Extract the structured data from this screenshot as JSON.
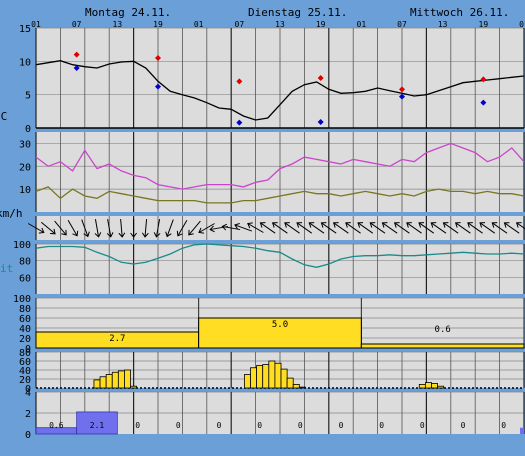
{
  "days": [
    "Montag 24.11.",
    "Dienstag 25.11.",
    "Mittwoch 26.11."
  ],
  "hour_labels": [
    "01",
    "07",
    "13",
    "19",
    "01",
    "07",
    "13",
    "19",
    "01",
    "07",
    "13",
    "19",
    "01"
  ],
  "colors": {
    "background": "#6a9fd8",
    "panel": "#dcdcdc",
    "temperature": "#000000",
    "max_marker": "#e00000",
    "min_marker": "#0000cc",
    "gust": "#cc44cc",
    "wind": "#777722",
    "humidity": "#1a8a8a",
    "precip_probability_bar": "#ffdd22",
    "precip_bar": "#ffdd22",
    "sunshine_bar": "#7070ee"
  },
  "panel_labels": {
    "temperature_unit": "°C",
    "wind_unit": "km/h",
    "humidity_unit": "it"
  },
  "chart_data": [
    {
      "type": "line",
      "name": "temperature",
      "ylim": [
        0,
        15
      ],
      "yticks": [
        "0",
        "5",
        "10",
        "15"
      ],
      "x": [
        0,
        3,
        6,
        9,
        12,
        15,
        18,
        21,
        24,
        27,
        30,
        33,
        36,
        39,
        42,
        45,
        48,
        51,
        54,
        57,
        60,
        63,
        66,
        69,
        72,
        75,
        78,
        81,
        84,
        87,
        90,
        93,
        96,
        99,
        102,
        105,
        108,
        111,
        114,
        117,
        120
      ],
      "values": [
        9.5,
        9.8,
        10.1,
        9.5,
        9.2,
        9.0,
        9.6,
        9.9,
        10.0,
        9.0,
        7.0,
        5.5,
        5.0,
        4.5,
        3.8,
        3.0,
        2.8,
        1.8,
        1.2,
        1.5,
        3.5,
        5.5,
        6.5,
        6.9,
        5.8,
        5.2,
        5.3,
        5.5,
        6.0,
        5.6,
        5.2,
        4.8,
        5.0,
        5.6,
        6.2,
        6.8,
        7.0,
        7.2,
        7.4,
        7.6,
        7.8
      ],
      "max_markers": [
        {
          "x": 10,
          "value": 11
        },
        {
          "x": 30,
          "value": 10.5
        },
        {
          "x": 50,
          "value": 7
        },
        {
          "x": 70,
          "value": 7.5
        },
        {
          "x": 90,
          "value": 5.8
        },
        {
          "x": 110,
          "value": 7.3
        }
      ],
      "min_markers": [
        {
          "x": 10,
          "value": 9
        },
        {
          "x": 30,
          "value": 6.2
        },
        {
          "x": 50,
          "value": 0.8
        },
        {
          "x": 70,
          "value": 0.9
        },
        {
          "x": 90,
          "value": 4.7
        },
        {
          "x": 110,
          "value": 3.8
        }
      ]
    },
    {
      "type": "line",
      "name": "wind",
      "ylim": [
        0,
        35
      ],
      "yticks": [
        "10",
        "20",
        "30"
      ],
      "x": [
        0,
        3,
        6,
        9,
        12,
        15,
        18,
        21,
        24,
        27,
        30,
        33,
        36,
        39,
        42,
        45,
        48,
        51,
        54,
        57,
        60,
        63,
        66,
        69,
        72,
        75,
        78,
        81,
        84,
        87,
        90,
        93,
        96,
        99,
        102,
        105,
        108,
        111,
        114,
        117,
        120
      ],
      "series": [
        {
          "values": [
            24,
            20,
            22,
            18,
            27,
            19,
            21,
            18,
            16,
            15,
            12,
            11,
            10,
            11,
            12,
            12,
            12,
            11,
            13,
            14,
            19,
            21,
            24,
            23,
            22,
            21,
            23,
            22,
            21,
            20,
            23,
            22,
            26,
            28,
            30,
            28,
            26,
            22,
            24,
            28,
            22
          ]
        },
        {
          "values": [
            9,
            11,
            6,
            10,
            7,
            6,
            9,
            8,
            7,
            6,
            5,
            5,
            5,
            5,
            4,
            4,
            4,
            5,
            5,
            6,
            7,
            8,
            9,
            8,
            8,
            7,
            8,
            9,
            8,
            7,
            8,
            7,
            9,
            10,
            9,
            9,
            8,
            9,
            8,
            8,
            7
          ]
        }
      ]
    },
    {
      "type": "line",
      "name": "wind_direction",
      "x": [
        0,
        3,
        6,
        9,
        12,
        15,
        18,
        21,
        24,
        27,
        30,
        33,
        36,
        39,
        42,
        45,
        48,
        51,
        54,
        57,
        60,
        63,
        66,
        69,
        72,
        75,
        78,
        81,
        84,
        87,
        90,
        93,
        96,
        99,
        102,
        105,
        108,
        111,
        114,
        117,
        120
      ],
      "directions_deg": [
        300,
        310,
        320,
        330,
        340,
        350,
        350,
        355,
        0,
        5,
        10,
        20,
        30,
        40,
        60,
        80,
        100,
        110,
        120,
        125,
        125,
        125,
        125,
        125,
        125,
        125,
        125,
        125,
        125,
        125,
        125,
        125,
        125,
        125,
        125,
        125,
        125,
        125,
        125,
        125,
        125
      ]
    },
    {
      "type": "line",
      "name": "humidity",
      "ylim": [
        40,
        100
      ],
      "yticks": [
        "60",
        "80",
        "100"
      ],
      "x": [
        0,
        3,
        6,
        9,
        12,
        15,
        18,
        21,
        24,
        27,
        30,
        33,
        36,
        39,
        42,
        45,
        48,
        51,
        54,
        57,
        60,
        63,
        66,
        69,
        72,
        75,
        78,
        81,
        84,
        87,
        90,
        93,
        96,
        99,
        102,
        105,
        108,
        111,
        114,
        117,
        120
      ],
      "values": [
        95,
        97,
        97,
        97,
        96,
        90,
        85,
        78,
        76,
        78,
        83,
        88,
        95,
        99,
        100,
        99,
        98,
        97,
        95,
        92,
        90,
        82,
        75,
        72,
        76,
        82,
        85,
        86,
        86,
        87,
        86,
        86,
        87,
        88,
        89,
        90,
        89,
        88,
        88,
        89,
        88
      ]
    },
    {
      "type": "bar",
      "name": "precipitation_probability",
      "ylim": [
        0,
        100
      ],
      "yticks": [
        "0",
        "20",
        "40",
        "60",
        "80",
        "100"
      ],
      "bars": [
        {
          "from": 0,
          "to": 40,
          "value": 32,
          "label": "2.7"
        },
        {
          "from": 40,
          "to": 80,
          "value": 60,
          "label": "5.0"
        },
        {
          "from": 80,
          "to": 120,
          "value": 8,
          "label": "0.6"
        }
      ]
    },
    {
      "type": "bar",
      "name": "precipitation",
      "ylim": [
        0,
        80
      ],
      "yticks": [
        "0",
        "20",
        "40",
        "60",
        "80"
      ],
      "bar_x": [
        15,
        16.5,
        18,
        19.5,
        21,
        22.5,
        24,
        52,
        53.5,
        55,
        56.5,
        58,
        59.5,
        61,
        62.5,
        64,
        65.5,
        95,
        96.5,
        98,
        99.5
      ],
      "values": [
        18,
        25,
        30,
        35,
        38,
        40,
        4,
        30,
        45,
        50,
        52,
        60,
        55,
        42,
        22,
        8,
        2,
        8,
        12,
        10,
        4
      ]
    },
    {
      "type": "bar",
      "name": "sunshine",
      "ylim": [
        0,
        4
      ],
      "yticks": [
        "0",
        "2",
        "4"
      ],
      "bars": [
        {
          "from": 0,
          "to": 10,
          "value": 0.6,
          "label": "0.6"
        },
        {
          "from": 10,
          "to": 20,
          "value": 2.1,
          "label": "2.1"
        },
        {
          "from": 20,
          "to": 30,
          "value": 0,
          "label": "0"
        },
        {
          "from": 30,
          "to": 40,
          "value": 0,
          "label": "0"
        },
        {
          "from": 40,
          "to": 50,
          "value": 0,
          "label": "0"
        },
        {
          "from": 50,
          "to": 60,
          "value": 0,
          "label": "0"
        },
        {
          "from": 60,
          "to": 70,
          "value": 0,
          "label": "0"
        },
        {
          "from": 70,
          "to": 80,
          "value": 0,
          "label": "0"
        },
        {
          "from": 80,
          "to": 90,
          "value": 0,
          "label": "0"
        },
        {
          "from": 90,
          "to": 100,
          "value": 0,
          "label": "0"
        },
        {
          "from": 100,
          "to": 110,
          "value": 0,
          "label": "0"
        },
        {
          "from": 110,
          "to": 120,
          "value": 0,
          "label": "0"
        }
      ]
    }
  ]
}
